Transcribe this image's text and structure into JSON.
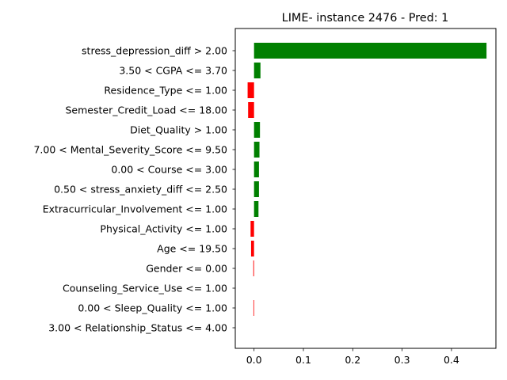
{
  "chart_data": {
    "type": "bar",
    "orientation": "horizontal",
    "title": "LIME- instance 2476 - Pred: 1",
    "xlabel": "",
    "ylabel": "",
    "xlim": [
      -0.038,
      0.49
    ],
    "xticks": [
      0.0,
      0.1,
      0.2,
      0.3,
      0.4
    ],
    "xtick_labels": [
      "0.0",
      "0.1",
      "0.2",
      "0.3",
      "0.4"
    ],
    "grid": false,
    "positive_color": "#008000",
    "negative_color": "#ff0000",
    "categories": [
      "stress_depression_diff > 2.00",
      "3.50 < CGPA <= 3.70",
      "Residence_Type <= 1.00",
      "Semester_Credit_Load <= 18.00",
      "Diet_Quality > 1.00",
      "7.00 < Mental_Severity_Score <= 9.50",
      "0.00 < Course <= 3.00",
      "0.50 < stress_anxiety_diff <= 2.50",
      "Extracurricular_Involvement <= 1.00",
      "Physical_Activity <= 1.00",
      "Age <= 19.50",
      "Gender <= 0.00",
      "Counseling_Service_Use <= 1.00",
      "0.00 < Sleep_Quality <= 1.00",
      "3.00 < Relationship_Status <= 4.00"
    ],
    "values": [
      0.471,
      0.013,
      -0.013,
      -0.012,
      0.012,
      0.011,
      0.01,
      0.01,
      0.009,
      -0.007,
      -0.006,
      -0.0015,
      0.0,
      -0.0012,
      0.0
    ]
  }
}
